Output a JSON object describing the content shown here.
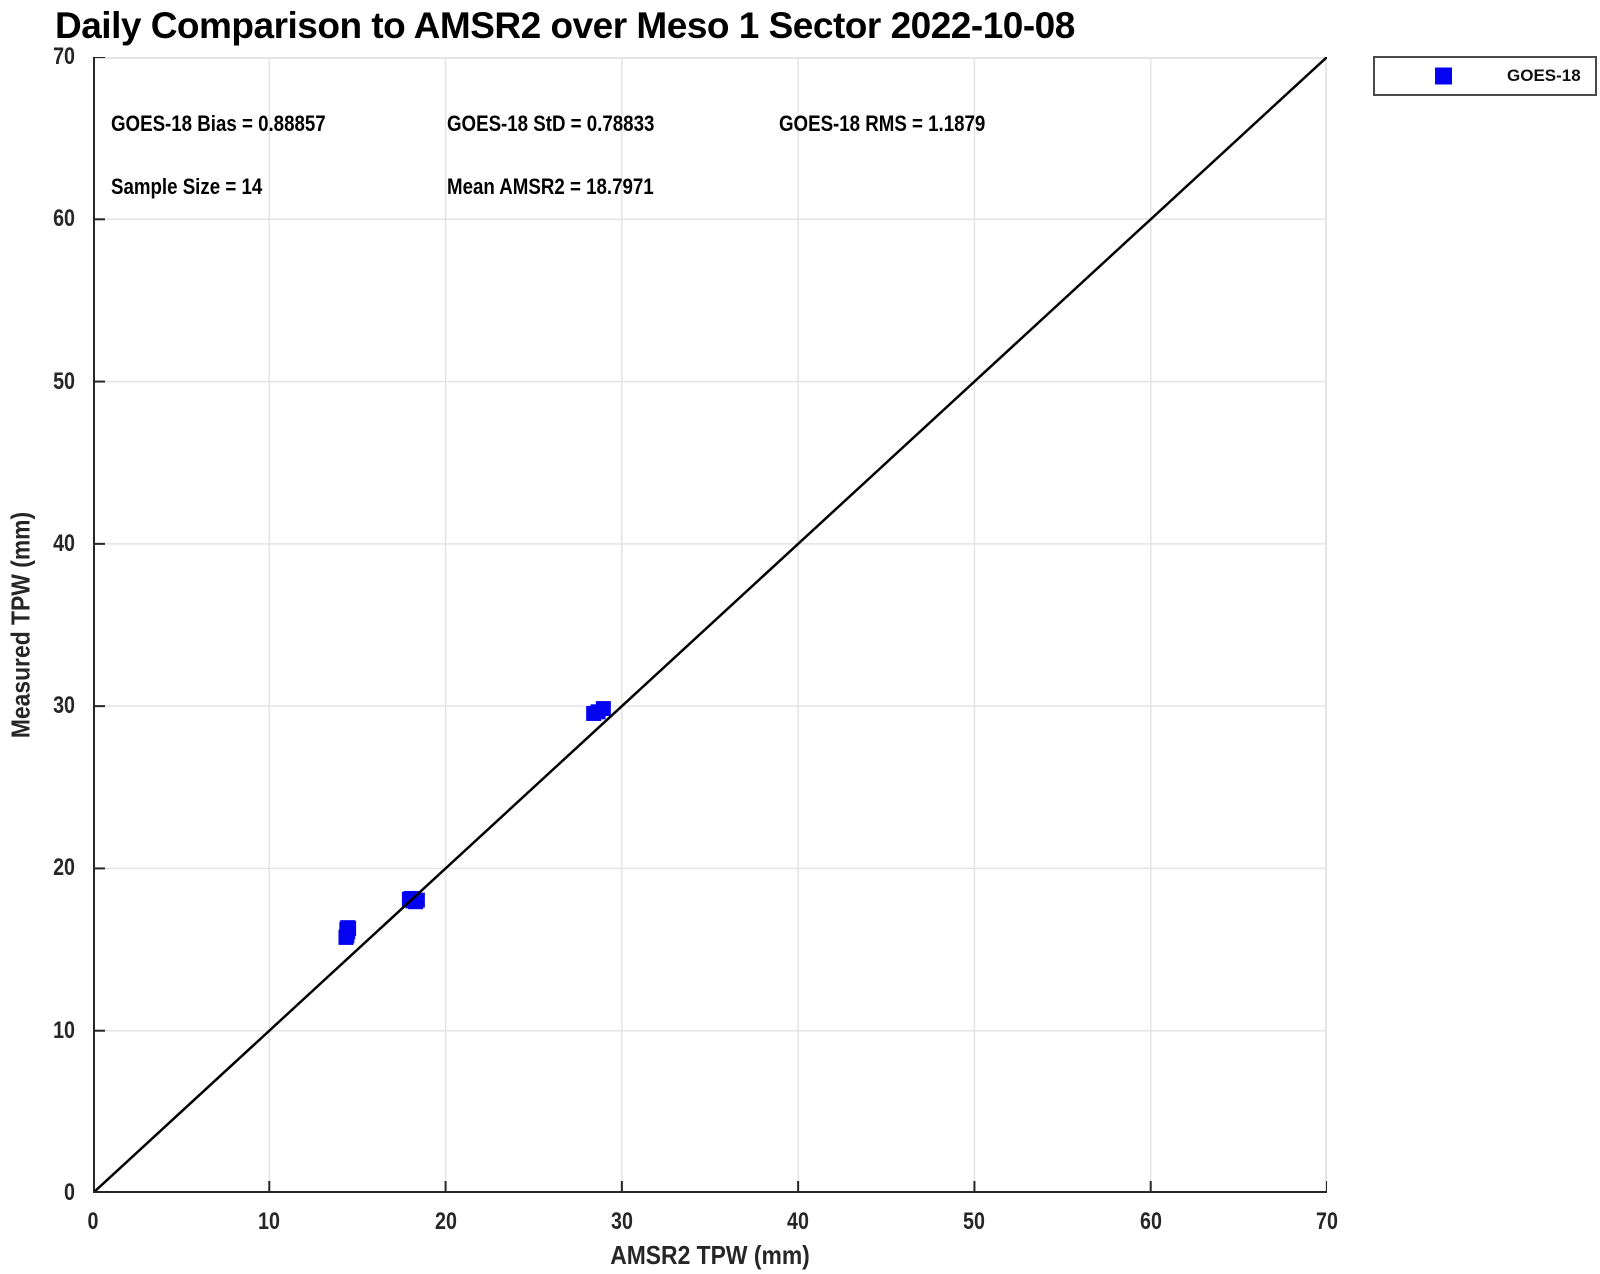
{
  "figure": {
    "background": "#ffffff"
  },
  "colors": {
    "marker": "#0404f0",
    "grid": "#e4e4e4",
    "axis": "#262626",
    "reference_line": "#000000",
    "text": "#000000",
    "tick_text": "#262626"
  },
  "chart_data": {
    "type": "scatter",
    "title": "Daily Comparison to AMSR2 over Meso 1 Sector 2022-10-08",
    "xlabel": "AMSR2 TPW (mm)",
    "ylabel": "Measured TPW (mm)",
    "xlim": [
      0,
      70
    ],
    "ylim": [
      0,
      70
    ],
    "xticks": [
      0,
      10,
      20,
      30,
      40,
      50,
      60,
      70
    ],
    "yticks": [
      0,
      10,
      20,
      30,
      40,
      50,
      60,
      70
    ],
    "grid": true,
    "legend_position": "outside-top-right",
    "series": [
      {
        "name": "GOES-18",
        "marker": "square",
        "color": "#0404f0",
        "points": [
          [
            14.35,
            15.75
          ],
          [
            14.4,
            15.85
          ],
          [
            14.45,
            16.1
          ],
          [
            14.4,
            16.25
          ],
          [
            14.5,
            16.3
          ],
          [
            14.45,
            16.35
          ],
          [
            17.95,
            18.1
          ],
          [
            18.05,
            18.15
          ],
          [
            18.15,
            18.0
          ],
          [
            18.3,
            17.95
          ],
          [
            18.4,
            18.05
          ],
          [
            28.4,
            29.55
          ],
          [
            28.65,
            29.65
          ],
          [
            28.95,
            29.85
          ]
        ]
      }
    ],
    "reference_line": {
      "from": [
        0,
        0
      ],
      "to": [
        70,
        70
      ],
      "color": "#000000",
      "width": 2.5
    },
    "annotations": [
      {
        "text": "GOES-18 Bias = 0.88857",
        "x": 1.0,
        "y": 65.9
      },
      {
        "text": "GOES-18 StD = 0.78833",
        "x": 20.1,
        "y": 65.9
      },
      {
        "text": "GOES-18 RMS = 1.1879",
        "x": 38.9,
        "y": 65.9
      },
      {
        "text": "Sample Size = 14",
        "x": 1.0,
        "y": 62.0
      },
      {
        "text": "Mean AMSR2 = 18.7971",
        "x": 20.1,
        "y": 62.0
      }
    ],
    "stats": {
      "bias": 0.88857,
      "std": 0.78833,
      "rms": 1.1879,
      "sample_size": 14,
      "mean_amsr2": 18.7971
    }
  }
}
